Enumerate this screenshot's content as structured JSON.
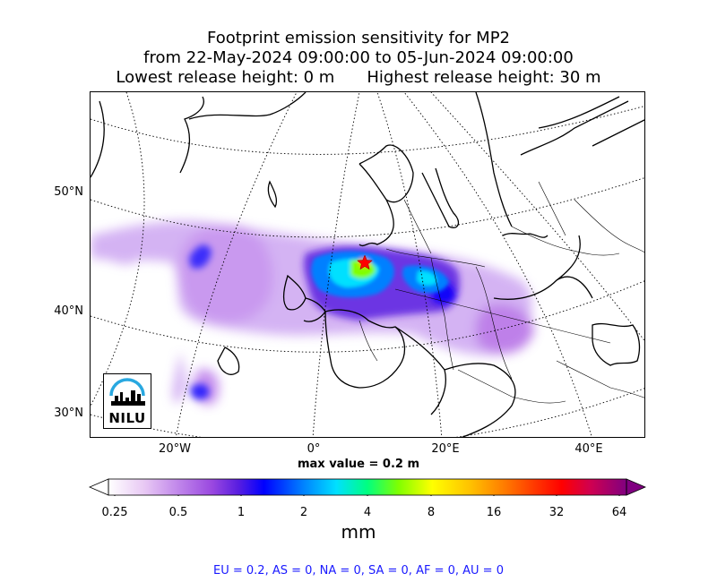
{
  "title": {
    "line1": "Footprint emission sensitivity for MP2",
    "line2": "from 22-May-2024 09:00:00 to 05-Jun-2024 09:00:00",
    "line3a": "Lowest release height: 0 m",
    "line3b": "Highest release height: 30 m"
  },
  "map": {
    "lat_labels": [
      "50°N",
      "40°N",
      "30°N"
    ],
    "lon_labels": [
      "20°W",
      "0°",
      "20°E",
      "40°E"
    ],
    "release_marker": "red star",
    "logo_text": "NILU"
  },
  "max_value_text": "max value = 0.2 m",
  "colorbar": {
    "tick_labels": [
      "0.25",
      "0.5",
      "1",
      "2",
      "4",
      "8",
      "16",
      "32",
      "64"
    ],
    "unit": "mm",
    "colors": [
      "#ffffff",
      "#d9a8f0",
      "#a04de0",
      "#5a1ee0",
      "#0000ff",
      "#0080ff",
      "#00e0ff",
      "#00ff80",
      "#80ff00",
      "#ffff00",
      "#ffb000",
      "#ff6000",
      "#ff0000",
      "#d00050",
      "#800080"
    ]
  },
  "regions_text": "EU = 0.2,  AS = 0,  NA = 0,  SA = 0,  AF = 0,  AU = 0",
  "colors": {
    "regions_text": "#1a1aff",
    "plume_low": "#b26be8",
    "plume_mid": "#0000ff",
    "plume_high": "#00e0ff"
  }
}
